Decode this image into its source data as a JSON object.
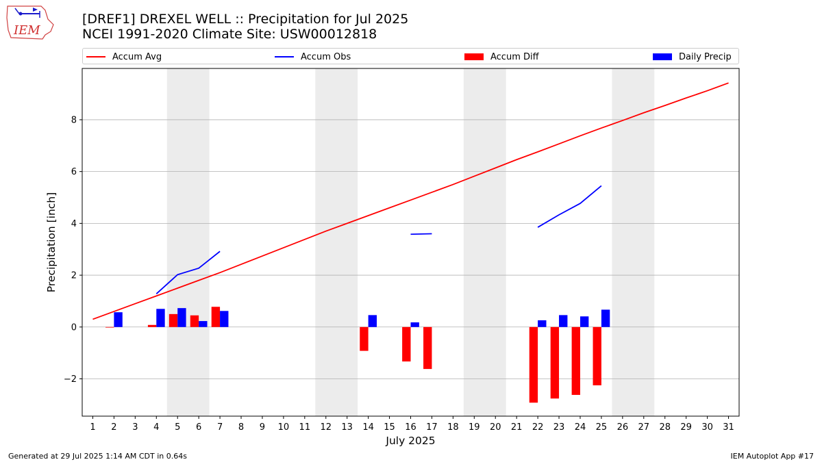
{
  "header": {
    "title_line1": "[DREF1] DREXEL WELL :: Precipitation for Jul 2025",
    "title_line2": "NCEI 1991-2020 Climate Site: USW00012818",
    "logo_text": "IEM"
  },
  "legend": [
    {
      "label": "Accum Avg",
      "color": "#ff0000",
      "kind": "line"
    },
    {
      "label": "Accum Obs",
      "color": "#0000ff",
      "kind": "line"
    },
    {
      "label": "Accum Diff",
      "color": "#ff0000",
      "kind": "box"
    },
    {
      "label": "Daily Precip",
      "color": "#0000ff",
      "kind": "box"
    }
  ],
  "footer": {
    "generated": "Generated at 29 Jul 2025 1:14 AM CDT in 0.64s",
    "app": "IEM Autoplot App #17"
  },
  "chart_data": {
    "type": "bar",
    "xlabel": "July 2025",
    "ylabel": "Precipitation [inch]",
    "xlim": [
      0.5,
      31.5
    ],
    "ylim": [
      -3.44,
      9.98
    ],
    "yticks": [
      -2,
      0,
      2,
      4,
      6,
      8
    ],
    "ytick_labels": [
      "−2",
      "0",
      "2",
      "4",
      "6",
      "8"
    ],
    "xticks": [
      1,
      2,
      3,
      4,
      5,
      6,
      7,
      8,
      9,
      10,
      11,
      12,
      13,
      14,
      15,
      16,
      17,
      18,
      19,
      20,
      21,
      22,
      23,
      24,
      25,
      26,
      27,
      28,
      29,
      30,
      31
    ],
    "grid": "horizontal",
    "weekend_bands": [
      [
        4.5,
        6.5
      ],
      [
        11.5,
        13.5
      ],
      [
        18.5,
        20.5
      ],
      [
        25.5,
        27.5
      ]
    ],
    "weekend_band_color": "#ececec",
    "accum_avg": {
      "name": "Accum Avg",
      "color": "#ff0000",
      "x": [
        1,
        2,
        3,
        4,
        5,
        6,
        7,
        8,
        9,
        10,
        11,
        12,
        13,
        14,
        15,
        16,
        17,
        18,
        19,
        20,
        21,
        22,
        23,
        24,
        25,
        26,
        27,
        28,
        29,
        30,
        31
      ],
      "y": [
        0.3,
        0.6,
        0.9,
        1.2,
        1.5,
        1.8,
        2.1,
        2.42,
        2.74,
        3.06,
        3.38,
        3.7,
        4.0,
        4.3,
        4.6,
        4.9,
        5.2,
        5.5,
        5.82,
        6.14,
        6.46,
        6.76,
        7.07,
        7.38,
        7.68,
        7.97,
        8.27,
        8.55,
        8.84,
        9.12,
        9.42
      ]
    },
    "accum_obs": {
      "name": "Accum Obs",
      "color": "#0000ff",
      "segments": [
        {
          "x": [
            4,
            5,
            6,
            7
          ],
          "y": [
            1.28,
            2.02,
            2.27,
            2.92
          ]
        },
        {
          "x": [
            16,
            17
          ],
          "y": [
            3.58,
            3.6
          ]
        },
        {
          "x": [
            22,
            23,
            24,
            25
          ],
          "y": [
            3.85,
            4.33,
            4.77,
            5.45
          ]
        }
      ]
    },
    "accum_diff": {
      "name": "Accum Diff",
      "color": "#ff0000",
      "x": [
        2,
        4,
        5,
        6,
        7,
        14,
        16,
        17,
        22,
        23,
        24,
        25
      ],
      "values": [
        -0.02,
        0.08,
        0.5,
        0.45,
        0.78,
        -0.92,
        -1.33,
        -1.62,
        -2.92,
        -2.76,
        -2.62,
        -2.25
      ]
    },
    "daily_precip": {
      "name": "Daily Precip",
      "color": "#0000ff",
      "x": [
        2,
        4,
        5,
        6,
        7,
        14,
        16,
        22,
        23,
        24,
        25
      ],
      "values": [
        0.57,
        0.7,
        0.73,
        0.23,
        0.62,
        0.46,
        0.18,
        0.26,
        0.46,
        0.41,
        0.67
      ]
    }
  }
}
